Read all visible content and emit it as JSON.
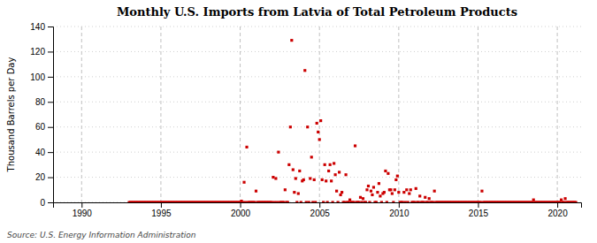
{
  "chart_data": {
    "type": "scatter",
    "title": "Monthly U.S. Imports from Latvia of Total Petroleum Products",
    "ylabel": "Thousand Barrels per Day",
    "source": "Source: U.S. Energy Information Administration",
    "color": "#cc0000",
    "marker": "square",
    "grid": true,
    "xlim": [
      1988.2,
      2021.5
    ],
    "xticks": [
      1990,
      1995,
      2000,
      2005,
      2010,
      2015,
      2020
    ],
    "ylim": [
      0,
      140
    ],
    "yticks": [
      0,
      20,
      40,
      60,
      80,
      100,
      120,
      140
    ],
    "x": [
      1993.0,
      1993.083,
      1993.167,
      1993.25,
      1993.333,
      1993.417,
      1993.5,
      1993.583,
      1993.667,
      1993.75,
      1993.833,
      1993.917,
      1994.0,
      1994.083,
      1994.167,
      1994.25,
      1994.333,
      1994.417,
      1994.5,
      1994.583,
      1994.667,
      1994.75,
      1994.833,
      1994.917,
      1995.0,
      1995.083,
      1995.167,
      1995.25,
      1995.333,
      1995.417,
      1995.5,
      1995.583,
      1995.667,
      1995.75,
      1995.833,
      1995.917,
      1996.0,
      1996.083,
      1996.167,
      1996.25,
      1996.333,
      1996.417,
      1996.5,
      1996.583,
      1996.667,
      1996.75,
      1996.833,
      1996.917,
      1997.0,
      1997.083,
      1997.167,
      1997.25,
      1997.333,
      1997.417,
      1997.5,
      1997.583,
      1997.667,
      1997.75,
      1997.833,
      1997.917,
      1998.0,
      1998.083,
      1998.167,
      1998.25,
      1998.333,
      1998.417,
      1998.5,
      1998.583,
      1998.667,
      1998.75,
      1998.833,
      1998.917,
      1999.0,
      1999.083,
      1999.167,
      1999.25,
      1999.333,
      1999.417,
      1999.5,
      1999.583,
      1999.667,
      1999.75,
      1999.833,
      1999.917,
      2000.0,
      2000.083,
      2000.167,
      2000.25,
      2000.333,
      2000.417,
      2000.5,
      2000.583,
      2000.667,
      2000.75,
      2000.833,
      2000.917,
      2001.0,
      2001.083,
      2001.167,
      2001.25,
      2001.333,
      2001.417,
      2001.5,
      2001.583,
      2001.667,
      2001.75,
      2001.833,
      2001.917,
      2002.0,
      2002.083,
      2002.167,
      2002.25,
      2002.333,
      2002.417,
      2002.5,
      2002.583,
      2002.667,
      2002.75,
      2002.833,
      2002.917,
      2003.0,
      2003.083,
      2003.167,
      2003.25,
      2003.333,
      2003.417,
      2003.5,
      2003.583,
      2003.667,
      2003.75,
      2003.833,
      2003.917,
      2004.0,
      2004.083,
      2004.167,
      2004.25,
      2004.333,
      2004.417,
      2004.5,
      2004.583,
      2004.667,
      2004.75,
      2004.833,
      2004.917,
      2005.0,
      2005.083,
      2005.167,
      2005.25,
      2005.333,
      2005.417,
      2005.5,
      2005.583,
      2005.667,
      2005.75,
      2005.833,
      2005.917,
      2006.0,
      2006.083,
      2006.167,
      2006.25,
      2006.333,
      2006.417,
      2006.5,
      2006.583,
      2006.667,
      2006.75,
      2006.833,
      2006.917,
      2007.0,
      2007.083,
      2007.167,
      2007.25,
      2007.333,
      2007.417,
      2007.5,
      2007.583,
      2007.667,
      2007.75,
      2007.833,
      2007.917,
      2008.0,
      2008.083,
      2008.167,
      2008.25,
      2008.333,
      2008.417,
      2008.5,
      2008.583,
      2008.667,
      2008.75,
      2008.833,
      2008.917,
      2009.0,
      2009.083,
      2009.167,
      2009.25,
      2009.333,
      2009.417,
      2009.5,
      2009.583,
      2009.667,
      2009.75,
      2009.833,
      2009.917,
      2010.0,
      2010.083,
      2010.167,
      2010.25,
      2010.333,
      2010.417,
      2010.5,
      2010.583,
      2010.667,
      2010.75,
      2010.833,
      2010.917,
      2011.0,
      2011.083,
      2011.167,
      2011.25,
      2011.333,
      2011.417,
      2011.5,
      2011.583,
      2011.667,
      2011.75,
      2011.833,
      2011.917,
      2012.0,
      2012.083,
      2012.167,
      2012.25,
      2012.333,
      2012.417,
      2012.5,
      2012.583,
      2012.667,
      2012.75,
      2012.833,
      2012.917,
      2013.0,
      2013.083,
      2013.167,
      2013.25,
      2013.333,
      2013.417,
      2013.5,
      2013.583,
      2013.667,
      2013.75,
      2013.833,
      2013.917,
      2014.0,
      2014.083,
      2014.167,
      2014.25,
      2014.333,
      2014.417,
      2014.5,
      2014.583,
      2014.667,
      2014.75,
      2014.833,
      2014.917,
      2015.0,
      2015.083,
      2015.167,
      2015.25,
      2015.333,
      2015.417,
      2015.5,
      2015.583,
      2015.667,
      2015.75,
      2015.833,
      2015.917,
      2016.0,
      2016.083,
      2016.167,
      2016.25,
      2016.333,
      2016.417,
      2016.5,
      2016.583,
      2016.667,
      2016.75,
      2016.833,
      2016.917,
      2017.0,
      2017.083,
      2017.167,
      2017.25,
      2017.333,
      2017.417,
      2017.5,
      2017.583,
      2017.667,
      2017.75,
      2017.833,
      2017.917,
      2018.0,
      2018.083,
      2018.167,
      2018.25,
      2018.333,
      2018.417,
      2018.5,
      2018.583,
      2018.667,
      2018.75,
      2018.833,
      2018.917,
      2019.0,
      2019.083,
      2019.167,
      2019.25,
      2019.333,
      2019.417,
      2019.5,
      2019.583,
      2019.667,
      2019.75,
      2019.833,
      2019.917,
      2020.0,
      2020.083,
      2020.167,
      2020.25,
      2020.333,
      2020.417,
      2020.5,
      2020.583,
      2020.667,
      2020.75,
      2020.833,
      2020.917,
      2021.0,
      2021.083,
      2021.167
    ],
    "values": [
      0,
      0,
      0,
      0,
      0,
      0,
      0,
      0,
      0,
      0,
      0,
      0,
      0,
      0,
      0,
      0,
      0,
      0,
      0,
      0,
      0,
      0,
      0,
      0,
      0,
      0,
      0,
      0,
      0,
      0,
      0,
      0,
      0,
      0,
      0,
      0,
      0,
      0,
      0,
      0,
      0,
      0,
      0,
      0,
      0,
      0,
      0,
      0,
      0,
      0,
      0,
      0,
      0,
      0,
      0,
      0,
      0,
      0,
      0,
      0,
      0,
      0,
      0,
      0,
      0,
      0,
      0,
      0,
      0,
      0,
      0,
      0,
      0,
      0,
      0,
      0,
      0,
      0,
      0,
      0,
      0,
      0,
      0,
      0,
      0,
      1,
      0,
      16,
      0,
      44,
      0,
      0,
      0,
      0,
      0,
      0,
      9,
      0,
      0,
      0,
      0,
      0,
      0,
      0,
      0,
      0,
      0,
      0,
      0,
      20,
      0,
      19,
      0,
      40,
      0,
      0,
      0,
      0,
      10,
      0,
      0,
      30,
      60,
      129,
      26,
      8,
      19,
      0,
      7,
      25,
      0,
      17,
      18,
      105,
      0,
      60,
      0,
      19,
      36,
      0,
      18,
      0,
      63,
      56,
      50,
      65,
      18,
      0,
      30,
      17,
      0,
      25,
      30,
      17,
      0,
      31,
      22,
      9,
      0,
      24,
      6,
      8,
      0,
      0,
      22,
      0,
      0,
      2,
      0,
      0,
      0,
      45,
      0,
      0,
      0,
      4,
      0,
      3,
      0,
      0,
      10,
      13,
      0,
      9,
      6,
      12,
      0,
      0,
      8,
      15,
      5,
      0,
      7,
      8,
      25,
      0,
      23,
      10,
      10,
      7,
      0,
      10,
      18,
      21,
      8,
      0,
      0,
      0,
      8,
      0,
      10,
      0,
      7,
      10,
      0,
      0,
      0,
      11,
      0,
      0,
      5,
      0,
      0,
      0,
      4,
      0,
      0,
      3,
      0,
      0,
      0,
      9,
      0,
      0,
      0,
      0,
      0,
      0,
      0,
      0,
      0,
      0,
      0,
      0,
      0,
      0,
      0,
      0,
      0,
      0,
      0,
      0,
      0,
      0,
      0,
      0,
      0,
      0,
      0,
      0,
      0,
      0,
      0,
      0,
      0,
      0,
      0,
      9,
      0,
      0,
      0,
      0,
      0,
      0,
      0,
      0,
      0,
      0,
      0,
      0,
      0,
      0,
      0,
      0,
      0,
      0,
      0,
      0,
      0,
      0,
      0,
      0,
      0,
      0,
      0,
      0,
      0,
      0,
      0,
      0,
      0,
      0,
      0,
      0,
      0,
      0,
      2,
      0,
      0,
      0,
      0,
      0,
      0,
      0,
      0,
      0,
      0,
      0,
      0,
      0,
      0,
      0,
      0,
      0,
      0,
      0,
      0,
      2,
      0,
      0,
      3,
      0,
      0,
      0,
      0,
      0,
      0,
      0,
      0
    ]
  }
}
